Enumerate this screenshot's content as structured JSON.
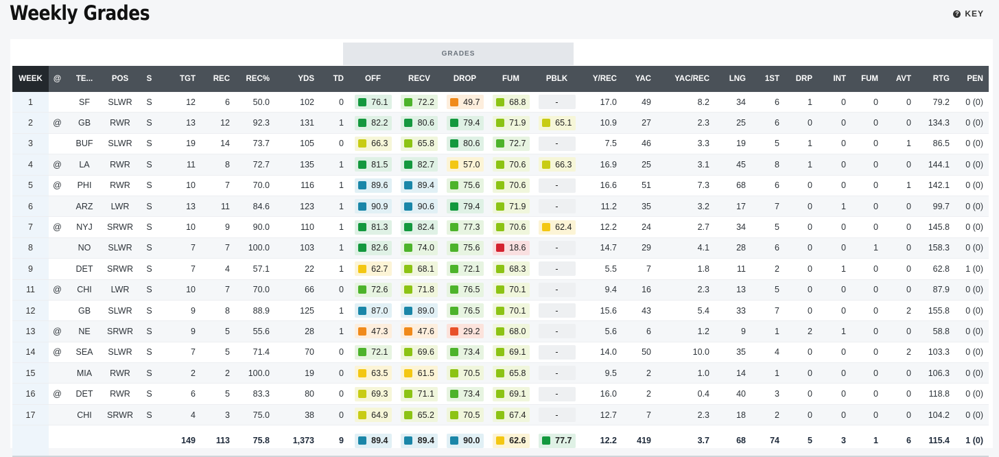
{
  "title": "Weekly Grades",
  "key_label": "KEY",
  "grades_band_label": "GRADES",
  "columns": [
    "WEEK",
    "@",
    "TE...",
    "POS",
    "S",
    "TGT",
    "REC",
    "REC%",
    "YDS",
    "TD",
    "OFF",
    "RECV",
    "DROP",
    "FUM",
    "PBLK",
    "Y/REC",
    "YAC",
    "YAC/REC",
    "LNG",
    "1ST",
    "DRP",
    "INT",
    "FUM",
    "AVT",
    "RTG",
    "PEN"
  ],
  "grade_colors": {
    "blue": {
      "sq": "#1a86a8",
      "bg": "#e1f0f5"
    },
    "darkgreen": {
      "sq": "#14983e",
      "bg": "#dff1e5"
    },
    "green": {
      "sq": "#4db32b",
      "bg": "#e7f4e1"
    },
    "lightgreen": {
      "sq": "#8cc314",
      "bg": "#f0f6dc"
    },
    "yellowgreen": {
      "sq": "#c8cc14",
      "bg": "#f6f6d8"
    },
    "yellow": {
      "sq": "#f3c713",
      "bg": "#fcf4d6"
    },
    "orange": {
      "sq": "#f08a1b",
      "bg": "#fdeedd"
    },
    "redorange": {
      "sq": "#e8512a",
      "bg": "#fce3dc"
    },
    "red": {
      "sq": "#d42330",
      "bg": "#f9dfe0"
    }
  },
  "rows": [
    {
      "week": "1",
      "at": "",
      "team": "SF",
      "pos": "SLWR",
      "s": "S",
      "tgt": "12",
      "rec": "6",
      "recp": "50.0",
      "yds": "102",
      "td": "0",
      "off": [
        "76.1",
        "darkgreen"
      ],
      "recv": [
        "72.2",
        "green"
      ],
      "drop": [
        "49.7",
        "orange"
      ],
      "fum": [
        "68.8",
        "lightgreen"
      ],
      "pblk": [
        "-",
        ""
      ],
      "yrec": "17.0",
      "yac": "49",
      "yacrec": "8.2",
      "lng": "34",
      "first": "6",
      "drp": "1",
      "int": "0",
      "fum2": "0",
      "avt": "0",
      "rtg": "79.2",
      "pen": "0 (0)"
    },
    {
      "week": "2",
      "at": "@",
      "team": "GB",
      "pos": "RWR",
      "s": "S",
      "tgt": "13",
      "rec": "12",
      "recp": "92.3",
      "yds": "131",
      "td": "1",
      "off": [
        "82.2",
        "darkgreen"
      ],
      "recv": [
        "80.6",
        "darkgreen"
      ],
      "drop": [
        "79.4",
        "darkgreen"
      ],
      "fum": [
        "71.9",
        "lightgreen"
      ],
      "pblk": [
        "65.1",
        "yellowgreen"
      ],
      "yrec": "10.9",
      "yac": "27",
      "yacrec": "2.3",
      "lng": "25",
      "first": "6",
      "drp": "0",
      "int": "0",
      "fum2": "0",
      "avt": "0",
      "rtg": "134.3",
      "pen": "0 (0)"
    },
    {
      "week": "3",
      "at": "",
      "team": "BUF",
      "pos": "SLWR",
      "s": "S",
      "tgt": "19",
      "rec": "14",
      "recp": "73.7",
      "yds": "105",
      "td": "0",
      "off": [
        "66.3",
        "yellowgreen"
      ],
      "recv": [
        "65.8",
        "lightgreen"
      ],
      "drop": [
        "80.6",
        "darkgreen"
      ],
      "fum": [
        "72.7",
        "green"
      ],
      "pblk": [
        "-",
        ""
      ],
      "yrec": "7.5",
      "yac": "46",
      "yacrec": "3.3",
      "lng": "19",
      "first": "5",
      "drp": "1",
      "int": "0",
      "fum2": "0",
      "avt": "1",
      "rtg": "86.5",
      "pen": "0 (0)"
    },
    {
      "week": "4",
      "at": "@",
      "team": "LA",
      "pos": "RWR",
      "s": "S",
      "tgt": "11",
      "rec": "8",
      "recp": "72.7",
      "yds": "135",
      "td": "1",
      "off": [
        "81.5",
        "darkgreen"
      ],
      "recv": [
        "82.7",
        "darkgreen"
      ],
      "drop": [
        "57.0",
        "yellow"
      ],
      "fum": [
        "70.6",
        "lightgreen"
      ],
      "pblk": [
        "66.3",
        "yellowgreen"
      ],
      "yrec": "16.9",
      "yac": "25",
      "yacrec": "3.1",
      "lng": "45",
      "first": "8",
      "drp": "1",
      "int": "0",
      "fum2": "0",
      "avt": "0",
      "rtg": "144.1",
      "pen": "0 (0)"
    },
    {
      "week": "5",
      "at": "@",
      "team": "PHI",
      "pos": "RWR",
      "s": "S",
      "tgt": "10",
      "rec": "7",
      "recp": "70.0",
      "yds": "116",
      "td": "1",
      "off": [
        "89.6",
        "blue"
      ],
      "recv": [
        "89.4",
        "blue"
      ],
      "drop": [
        "75.6",
        "green"
      ],
      "fum": [
        "70.6",
        "lightgreen"
      ],
      "pblk": [
        "-",
        ""
      ],
      "yrec": "16.6",
      "yac": "51",
      "yacrec": "7.3",
      "lng": "68",
      "first": "6",
      "drp": "0",
      "int": "0",
      "fum2": "0",
      "avt": "1",
      "rtg": "142.1",
      "pen": "0 (0)"
    },
    {
      "week": "6",
      "at": "",
      "team": "ARZ",
      "pos": "LWR",
      "s": "S",
      "tgt": "13",
      "rec": "11",
      "recp": "84.6",
      "yds": "123",
      "td": "1",
      "off": [
        "90.9",
        "blue"
      ],
      "recv": [
        "90.6",
        "blue"
      ],
      "drop": [
        "79.4",
        "darkgreen"
      ],
      "fum": [
        "71.9",
        "lightgreen"
      ],
      "pblk": [
        "-",
        ""
      ],
      "yrec": "11.2",
      "yac": "35",
      "yacrec": "3.2",
      "lng": "17",
      "first": "7",
      "drp": "0",
      "int": "1",
      "fum2": "0",
      "avt": "0",
      "rtg": "99.7",
      "pen": "0 (0)"
    },
    {
      "week": "7",
      "at": "@",
      "team": "NYJ",
      "pos": "SRWR",
      "s": "S",
      "tgt": "10",
      "rec": "9",
      "recp": "90.0",
      "yds": "110",
      "td": "1",
      "off": [
        "81.3",
        "darkgreen"
      ],
      "recv": [
        "82.4",
        "darkgreen"
      ],
      "drop": [
        "77.3",
        "green"
      ],
      "fum": [
        "70.6",
        "lightgreen"
      ],
      "pblk": [
        "62.4",
        "yellow"
      ],
      "yrec": "12.2",
      "yac": "24",
      "yacrec": "2.7",
      "lng": "34",
      "first": "5",
      "drp": "0",
      "int": "0",
      "fum2": "0",
      "avt": "0",
      "rtg": "145.8",
      "pen": "0 (0)"
    },
    {
      "week": "8",
      "at": "",
      "team": "NO",
      "pos": "SLWR",
      "s": "S",
      "tgt": "7",
      "rec": "7",
      "recp": "100.0",
      "yds": "103",
      "td": "1",
      "off": [
        "82.6",
        "darkgreen"
      ],
      "recv": [
        "74.0",
        "green"
      ],
      "drop": [
        "75.6",
        "green"
      ],
      "fum": [
        "18.6",
        "red"
      ],
      "pblk": [
        "-",
        ""
      ],
      "yrec": "14.7",
      "yac": "29",
      "yacrec": "4.1",
      "lng": "28",
      "first": "6",
      "drp": "0",
      "int": "0",
      "fum2": "1",
      "avt": "0",
      "rtg": "158.3",
      "pen": "0 (0)"
    },
    {
      "week": "9",
      "at": "",
      "team": "DET",
      "pos": "SRWR",
      "s": "S",
      "tgt": "7",
      "rec": "4",
      "recp": "57.1",
      "yds": "22",
      "td": "1",
      "off": [
        "62.7",
        "yellow"
      ],
      "recv": [
        "68.1",
        "lightgreen"
      ],
      "drop": [
        "72.1",
        "green"
      ],
      "fum": [
        "68.3",
        "lightgreen"
      ],
      "pblk": [
        "-",
        ""
      ],
      "yrec": "5.5",
      "yac": "7",
      "yacrec": "1.8",
      "lng": "11",
      "first": "2",
      "drp": "0",
      "int": "1",
      "fum2": "0",
      "avt": "0",
      "rtg": "62.8",
      "pen": "1 (0)"
    },
    {
      "week": "11",
      "at": "@",
      "team": "CHI",
      "pos": "LWR",
      "s": "S",
      "tgt": "10",
      "rec": "7",
      "recp": "70.0",
      "yds": "66",
      "td": "0",
      "off": [
        "72.6",
        "green"
      ],
      "recv": [
        "71.8",
        "lightgreen"
      ],
      "drop": [
        "76.5",
        "green"
      ],
      "fum": [
        "70.1",
        "lightgreen"
      ],
      "pblk": [
        "-",
        ""
      ],
      "yrec": "9.4",
      "yac": "16",
      "yacrec": "2.3",
      "lng": "13",
      "first": "5",
      "drp": "0",
      "int": "0",
      "fum2": "0",
      "avt": "0",
      "rtg": "87.9",
      "pen": "0 (0)"
    },
    {
      "week": "12",
      "at": "",
      "team": "GB",
      "pos": "SLWR",
      "s": "S",
      "tgt": "9",
      "rec": "8",
      "recp": "88.9",
      "yds": "125",
      "td": "1",
      "off": [
        "87.0",
        "blue"
      ],
      "recv": [
        "89.0",
        "blue"
      ],
      "drop": [
        "76.5",
        "green"
      ],
      "fum": [
        "70.1",
        "lightgreen"
      ],
      "pblk": [
        "-",
        ""
      ],
      "yrec": "15.6",
      "yac": "43",
      "yacrec": "5.4",
      "lng": "33",
      "first": "7",
      "drp": "0",
      "int": "0",
      "fum2": "0",
      "avt": "2",
      "rtg": "155.8",
      "pen": "0 (0)"
    },
    {
      "week": "13",
      "at": "@",
      "team": "NE",
      "pos": "SRWR",
      "s": "S",
      "tgt": "9",
      "rec": "5",
      "recp": "55.6",
      "yds": "28",
      "td": "1",
      "off": [
        "47.3",
        "orange"
      ],
      "recv": [
        "47.6",
        "orange"
      ],
      "drop": [
        "29.2",
        "redorange"
      ],
      "fum": [
        "68.0",
        "lightgreen"
      ],
      "pblk": [
        "-",
        ""
      ],
      "yrec": "5.6",
      "yac": "6",
      "yacrec": "1.2",
      "lng": "9",
      "first": "1",
      "drp": "2",
      "int": "1",
      "fum2": "0",
      "avt": "0",
      "rtg": "58.8",
      "pen": "0 (0)"
    },
    {
      "week": "14",
      "at": "@",
      "team": "SEA",
      "pos": "SLWR",
      "s": "S",
      "tgt": "7",
      "rec": "5",
      "recp": "71.4",
      "yds": "70",
      "td": "0",
      "off": [
        "72.1",
        "green"
      ],
      "recv": [
        "69.6",
        "lightgreen"
      ],
      "drop": [
        "73.4",
        "green"
      ],
      "fum": [
        "69.1",
        "lightgreen"
      ],
      "pblk": [
        "-",
        ""
      ],
      "yrec": "14.0",
      "yac": "50",
      "yacrec": "10.0",
      "lng": "35",
      "first": "4",
      "drp": "0",
      "int": "0",
      "fum2": "0",
      "avt": "2",
      "rtg": "103.3",
      "pen": "0 (0)"
    },
    {
      "week": "15",
      "at": "",
      "team": "MIA",
      "pos": "RWR",
      "s": "S",
      "tgt": "2",
      "rec": "2",
      "recp": "100.0",
      "yds": "19",
      "td": "0",
      "off": [
        "63.5",
        "yellow"
      ],
      "recv": [
        "61.5",
        "yellow"
      ],
      "drop": [
        "70.5",
        "lightgreen"
      ],
      "fum": [
        "65.8",
        "lightgreen"
      ],
      "pblk": [
        "-",
        ""
      ],
      "yrec": "9.5",
      "yac": "2",
      "yacrec": "1.0",
      "lng": "14",
      "first": "1",
      "drp": "0",
      "int": "0",
      "fum2": "0",
      "avt": "0",
      "rtg": "106.3",
      "pen": "0 (0)"
    },
    {
      "week": "16",
      "at": "@",
      "team": "DET",
      "pos": "RWR",
      "s": "S",
      "tgt": "6",
      "rec": "5",
      "recp": "83.3",
      "yds": "80",
      "td": "0",
      "off": [
        "69.3",
        "yellowgreen"
      ],
      "recv": [
        "71.1",
        "lightgreen"
      ],
      "drop": [
        "73.4",
        "green"
      ],
      "fum": [
        "69.1",
        "lightgreen"
      ],
      "pblk": [
        "-",
        ""
      ],
      "yrec": "16.0",
      "yac": "2",
      "yacrec": "0.4",
      "lng": "40",
      "first": "3",
      "drp": "0",
      "int": "0",
      "fum2": "0",
      "avt": "0",
      "rtg": "118.8",
      "pen": "0 (0)"
    },
    {
      "week": "17",
      "at": "",
      "team": "CHI",
      "pos": "SRWR",
      "s": "S",
      "tgt": "4",
      "rec": "3",
      "recp": "75.0",
      "yds": "38",
      "td": "0",
      "off": [
        "64.9",
        "yellowgreen"
      ],
      "recv": [
        "65.2",
        "lightgreen"
      ],
      "drop": [
        "70.5",
        "lightgreen"
      ],
      "fum": [
        "67.4",
        "lightgreen"
      ],
      "pblk": [
        "-",
        ""
      ],
      "yrec": "12.7",
      "yac": "7",
      "yacrec": "2.3",
      "lng": "18",
      "first": "2",
      "drp": "0",
      "int": "0",
      "fum2": "0",
      "avt": "0",
      "rtg": "104.2",
      "pen": "0 (0)"
    }
  ],
  "totals": {
    "week": "",
    "at": "",
    "team": "",
    "pos": "",
    "s": "",
    "tgt": "149",
    "rec": "113",
    "recp": "75.8",
    "yds": "1,373",
    "td": "9",
    "off": [
      "89.4",
      "blue"
    ],
    "recv": [
      "89.4",
      "blue"
    ],
    "drop": [
      "90.0",
      "blue"
    ],
    "fum": [
      "62.6",
      "yellow"
    ],
    "pblk": [
      "77.7",
      "darkgreen"
    ],
    "yrec": "12.2",
    "yac": "419",
    "yacrec": "3.7",
    "lng": "68",
    "first": "74",
    "drp": "5",
    "int": "3",
    "fum2": "1",
    "avt": "6",
    "rtg": "115.4",
    "pen": "1 (0)"
  }
}
